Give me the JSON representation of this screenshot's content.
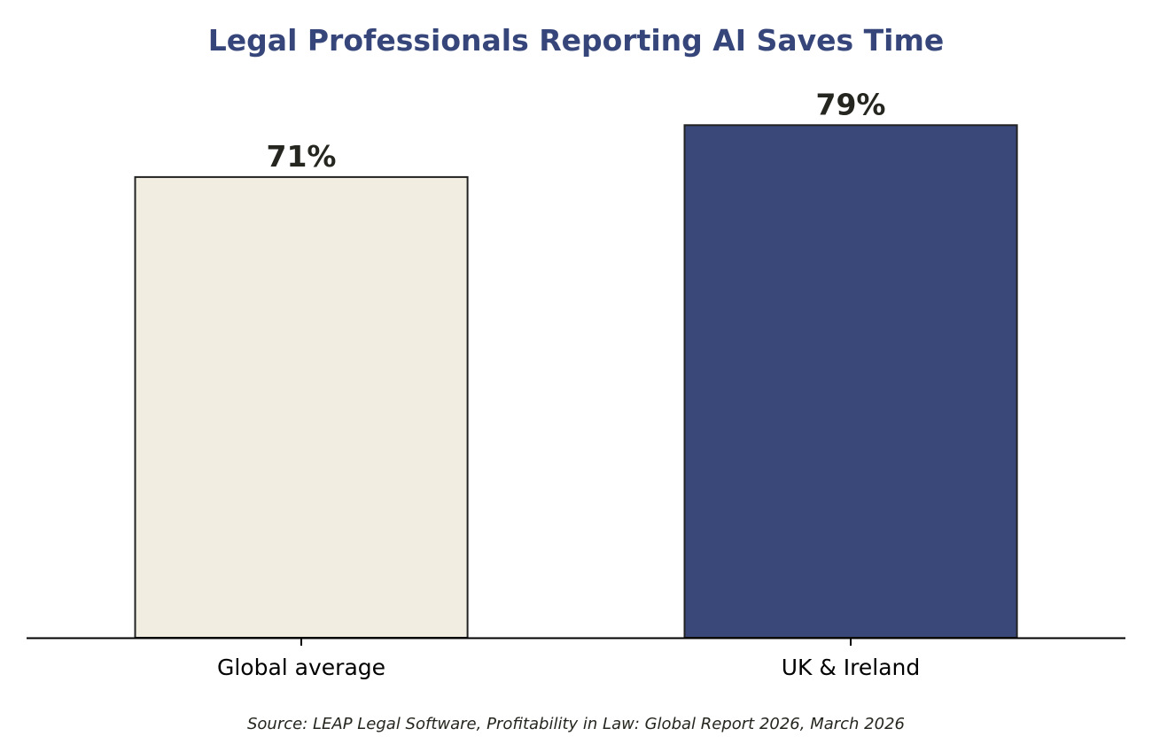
{
  "chart_data": {
    "type": "bar",
    "title": "Legal Professionals Reporting AI Saves Time",
    "categories": [
      "Global average",
      "UK & Ireland"
    ],
    "values": [
      71,
      79
    ],
    "value_labels": [
      "71%",
      "79%"
    ],
    "unit": "%",
    "ylim": [
      0,
      86
    ],
    "grid": false,
    "legend": "none",
    "xlabel": "",
    "ylabel": "",
    "source": "Source: LEAP Legal Software, Profitability in Law: Global Report 2026, March 2026"
  },
  "colors": {
    "title": "#36467a",
    "bars": [
      "#f1ede1",
      "#394878"
    ],
    "bar_edge": "#222222",
    "value_label": "#262620",
    "source": "#262620",
    "axis": "#000000"
  }
}
